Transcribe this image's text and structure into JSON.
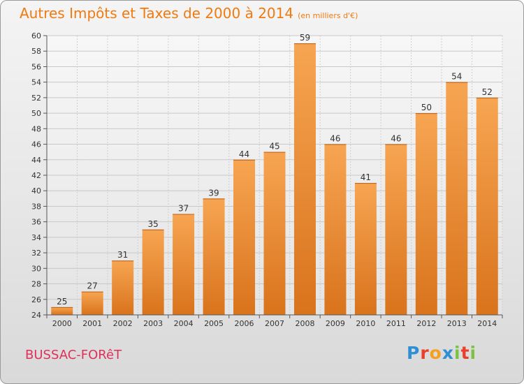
{
  "title": "Autres Impôts et Taxes de 2000 à 2014",
  "subtitle": "(en milliers d'€)",
  "commune": "BUSSAC-FORêT",
  "brand": {
    "letters": [
      {
        "char": "P",
        "color": "#2e8fd4"
      },
      {
        "char": "r",
        "color": "#e8402a"
      },
      {
        "char": "o",
        "color": "#f5a020"
      },
      {
        "char": "x",
        "color": "#2e8fd4"
      },
      {
        "char": "i",
        "color": "#7cc242"
      },
      {
        "char": "t",
        "color": "#e8402a"
      },
      {
        "char": "i",
        "color": "#7cc242"
      }
    ]
  },
  "chart_data": {
    "type": "bar",
    "categories": [
      "2000",
      "2001",
      "2002",
      "2003",
      "2004",
      "2005",
      "2006",
      "2007",
      "2008",
      "2009",
      "2010",
      "2011",
      "2012",
      "2013",
      "2014"
    ],
    "values": [
      25,
      27,
      31,
      35,
      37,
      39,
      44,
      45,
      59,
      46,
      41,
      46,
      50,
      54,
      52
    ],
    "ylim": [
      24,
      60
    ],
    "yticks": [
      24,
      26,
      28,
      30,
      32,
      34,
      36,
      38,
      40,
      42,
      44,
      46,
      48,
      50,
      52,
      54,
      56,
      58,
      60
    ],
    "grid": true,
    "bar_color": "#f08c28"
  }
}
